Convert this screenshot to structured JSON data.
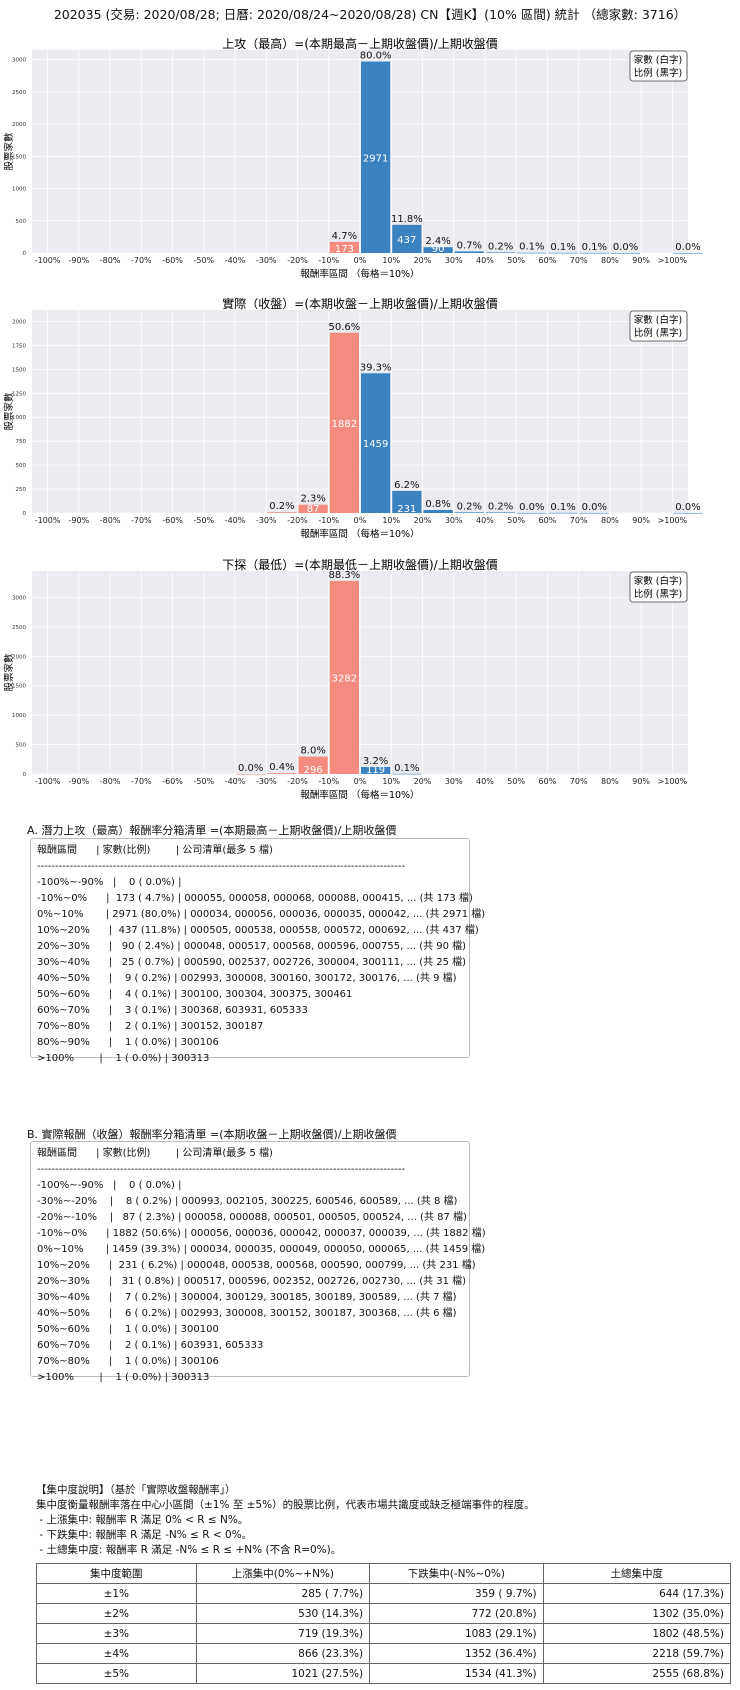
{
  "page_title": "202035 (交易: 2020/08/28; 日曆: 2020/08/24~2020/08/28) CN【週K】(10% 區間) 統計 （總家數: 3716）",
  "colors": {
    "negative": "#f48b7f",
    "positive": "#3a82c0",
    "plot_bg": "#ebebf2",
    "grid": "#ffffff"
  },
  "chart_data": [
    {
      "type": "bar",
      "title": "上攻（最高）=(本期最高－上期收盤價)/上期收盤價",
      "xlabel": "報酬率區間 （每格＝10%）",
      "ylabel": "股票家數",
      "legend": [
        "家數 (白字)",
        "比例 (黑字)"
      ],
      "legend_position": "top-right",
      "categories": [
        "-100%",
        "-90%",
        "-80%",
        "-70%",
        "-60%",
        "-50%",
        "-40%",
        "-30%",
        "-20%",
        "-10%",
        "0%",
        "10%",
        "20%",
        "30%",
        "40%",
        "50%",
        "60%",
        "70%",
        "80%",
        "90%",
        ">100%"
      ],
      "yticks": [
        0,
        500,
        1000,
        1500,
        2000,
        2500,
        3000
      ],
      "ylim": [
        0,
        3150
      ],
      "bars": [
        {
          "x": -10,
          "count": 173,
          "count_label": "173",
          "pct": "4.7%"
        },
        {
          "x": 0,
          "count": 2971,
          "count_label": "2971",
          "pct": "80.0%"
        },
        {
          "x": 10,
          "count": 437,
          "count_label": "437",
          "pct": "11.8%"
        },
        {
          "x": 20,
          "count": 90,
          "count_label": "90",
          "pct": "2.4%"
        },
        {
          "x": 30,
          "count": 25,
          "count_label": "",
          "pct": "0.7%"
        },
        {
          "x": 40,
          "count": 9,
          "count_label": "",
          "pct": "0.2%"
        },
        {
          "x": 50,
          "count": 4,
          "count_label": "",
          "pct": "0.1%"
        },
        {
          "x": 60,
          "count": 3,
          "count_label": "",
          "pct": "0.1%"
        },
        {
          "x": 70,
          "count": 2,
          "count_label": "",
          "pct": "0.1%"
        },
        {
          "x": 80,
          "count": 1,
          "count_label": "",
          "pct": "0.0%"
        },
        {
          "x": 100,
          "count": 1,
          "count_label": "",
          "pct": "0.0%"
        }
      ]
    },
    {
      "type": "bar",
      "title": "實際（收盤）=(本期收盤－上期收盤價)/上期收盤價",
      "xlabel": "報酬率區間 （每格＝10%）",
      "ylabel": "股票家數",
      "legend": [
        "家數 (白字)",
        "比例 (黑字)"
      ],
      "legend_position": "top-right",
      "categories": [
        "-100%",
        "-90%",
        "-80%",
        "-70%",
        "-60%",
        "-50%",
        "-40%",
        "-30%",
        "-20%",
        "-10%",
        "0%",
        "10%",
        "20%",
        "30%",
        "40%",
        "50%",
        "60%",
        "70%",
        "80%",
        "90%",
        ">100%"
      ],
      "yticks": [
        0,
        250,
        500,
        750,
        1000,
        1250,
        1500,
        1750,
        2000
      ],
      "ylim": [
        0,
        2120
      ],
      "bars": [
        {
          "x": -30,
          "count": 8,
          "count_label": "",
          "pct": "0.2%"
        },
        {
          "x": -20,
          "count": 87,
          "count_label": "87",
          "pct": "2.3%"
        },
        {
          "x": -10,
          "count": 1882,
          "count_label": "1882",
          "pct": "50.6%"
        },
        {
          "x": 0,
          "count": 1459,
          "count_label": "1459",
          "pct": "39.3%"
        },
        {
          "x": 10,
          "count": 231,
          "count_label": "231",
          "pct": "6.2%"
        },
        {
          "x": 20,
          "count": 31,
          "count_label": "",
          "pct": "0.8%"
        },
        {
          "x": 30,
          "count": 7,
          "count_label": "",
          "pct": "0.2%"
        },
        {
          "x": 40,
          "count": 6,
          "count_label": "",
          "pct": "0.2%"
        },
        {
          "x": 50,
          "count": 1,
          "count_label": "",
          "pct": "0.0%"
        },
        {
          "x": 60,
          "count": 2,
          "count_label": "",
          "pct": "0.1%"
        },
        {
          "x": 70,
          "count": 1,
          "count_label": "",
          "pct": "0.0%"
        },
        {
          "x": 100,
          "count": 1,
          "count_label": "",
          "pct": "0.0%"
        }
      ]
    },
    {
      "type": "bar",
      "title": "下探（最低）=(本期最低－上期收盤價)/上期收盤價",
      "xlabel": "報酬率區間 （每格＝10%）",
      "ylabel": "股票家數",
      "legend": [
        "家數 (白字)",
        "比例 (黑字)"
      ],
      "legend_position": "top-right",
      "categories": [
        "-100%",
        "-90%",
        "-80%",
        "-70%",
        "-60%",
        "-50%",
        "-40%",
        "-30%",
        "-20%",
        "-10%",
        "0%",
        "10%",
        "20%",
        "30%",
        "40%",
        "50%",
        "60%",
        "70%",
        "80%",
        "90%",
        ">100%"
      ],
      "yticks": [
        0,
        500,
        1000,
        1500,
        2000,
        2500,
        3000
      ],
      "ylim": [
        0,
        3450
      ],
      "bars": [
        {
          "x": -40,
          "count": 1,
          "count_label": "",
          "pct": "0.0%"
        },
        {
          "x": -30,
          "count": 14,
          "count_label": "",
          "pct": "0.4%"
        },
        {
          "x": -20,
          "count": 296,
          "count_label": "296",
          "pct": "8.0%"
        },
        {
          "x": -10,
          "count": 3282,
          "count_label": "3282",
          "pct": "88.3%"
        },
        {
          "x": 0,
          "count": 119,
          "count_label": "119",
          "pct": "3.2%"
        },
        {
          "x": 10,
          "count": 4,
          "count_label": "",
          "pct": "0.1%"
        }
      ]
    }
  ],
  "list_a": {
    "heading": "A. 潛力上攻（最高）報酬率分箱清單 =(本期最高－上期收盤價)/上期收盤價",
    "lines": [
      "報酬區間      | 家數(比例)        | 公司清單(最多 5 檔)",
      "------------------------------------------------------------------------------------------------------",
      "-100%~-90%   |    0 ( 0.0%) |",
      "-10%~0%      |  173 ( 4.7%) | 000055, 000058, 000068, 000088, 000415, ... (共 173 檔)",
      "0%~10%       | 2971 (80.0%) | 000034, 000056, 000036, 000035, 000042, ... (共 2971 檔)",
      "10%~20%      |  437 (11.8%) | 000505, 000538, 000558, 000572, 000692, ... (共 437 檔)",
      "20%~30%      |   90 ( 2.4%) | 000048, 000517, 000568, 000596, 000755, ... (共 90 檔)",
      "30%~40%      |   25 ( 0.7%) | 000590, 002537, 002726, 300004, 300111, ... (共 25 檔)",
      "40%~50%      |    9 ( 0.2%) | 002993, 300008, 300160, 300172, 300176, ... (共 9 檔)",
      "50%~60%      |    4 ( 0.1%) | 300100, 300304, 300375, 300461",
      "60%~70%      |    3 ( 0.1%) | 300368, 603931, 605333",
      "70%~80%      |    2 ( 0.1%) | 300152, 300187",
      "80%~90%      |    1 ( 0.0%) | 300106",
      ">100%        |    1 ( 0.0%) | 300313"
    ]
  },
  "list_b": {
    "heading": "B. 實際報酬（收盤）報酬率分箱清單 =(本期收盤－上期收盤價)/上期收盤價",
    "lines": [
      "報酬區間      | 家數(比例)        | 公司清單(最多 5 檔)",
      "------------------------------------------------------------------------------------------------------",
      "-100%~-90%   |    0 ( 0.0%) |",
      "-30%~-20%    |    8 ( 0.2%) | 000993, 002105, 300225, 600546, 600589, ... (共 8 檔)",
      "-20%~-10%    |   87 ( 2.3%) | 000058, 000088, 000501, 000505, 000524, ... (共 87 檔)",
      "-10%~0%      | 1882 (50.6%) | 000056, 000036, 000042, 000037, 000039, ... (共 1882 檔)",
      "0%~10%       | 1459 (39.3%) | 000034, 000035, 000049, 000050, 000065, ... (共 1459 檔)",
      "10%~20%      |  231 ( 6.2%) | 000048, 000538, 000568, 000590, 000799, ... (共 231 檔)",
      "20%~30%      |   31 ( 0.8%) | 000517, 000596, 002352, 002726, 002730, ... (共 31 檔)",
      "30%~40%      |    7 ( 0.2%) | 300004, 300129, 300185, 300189, 300589, ... (共 7 檔)",
      "40%~50%      |    6 ( 0.2%) | 002993, 300008, 300152, 300187, 300368, ... (共 6 檔)",
      "50%~60%      |    1 ( 0.0%) | 300100",
      "60%~70%      |    2 ( 0.1%) | 603931, 605333",
      "70%~80%      |    1 ( 0.0%) | 300106",
      ">100%        |    1 ( 0.0%) | 300313"
    ]
  },
  "explanation": {
    "lines": [
      "【集中度說明】（基於「實際收盤報酬率」）",
      "集中度衡量報酬率落在中心小區間（±1% 至 ±5%）的股票比例，代表市場共識度或缺乏極端事件的程度。",
      " - 上漲集中: 報酬率 R 滿足 0% < R ≤ N%。",
      " - 下跌集中: 報酬率 R 滿足 -N% ≤ R < 0%。",
      " - 土總集中度: 報酬率 R 滿足 -N% ≤ R ≤ +N% (不含 R=0%)。"
    ]
  },
  "concentration_table": {
    "headers": [
      "集中度範圍",
      "上漲集中(0%~+N%)",
      "下跌集中(-N%~0%)",
      "土總集中度"
    ],
    "rows": [
      [
        "±1%",
        "285 ( 7.7%)",
        "359 ( 9.7%)",
        "644 (17.3%)"
      ],
      [
        "±2%",
        "530 (14.3%)",
        "772 (20.8%)",
        "1302 (35.0%)"
      ],
      [
        "±3%",
        "719 (19.3%)",
        "1083 (29.1%)",
        "1802 (48.5%)"
      ],
      [
        "±4%",
        "866 (23.3%)",
        "1352 (36.4%)",
        "2218 (59.7%)"
      ],
      [
        "±5%",
        "1021 (27.5%)",
        "1534 (41.3%)",
        "2555 (68.8%)"
      ]
    ]
  }
}
